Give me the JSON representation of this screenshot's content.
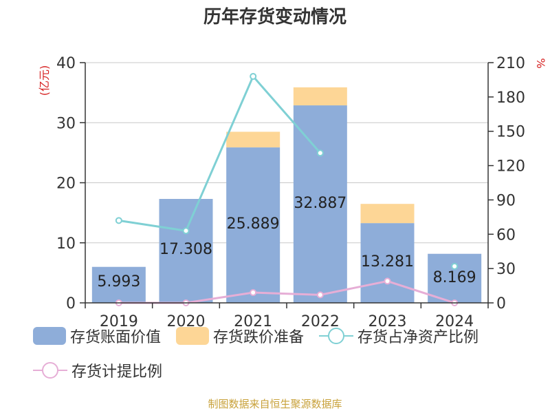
{
  "chart_data": {
    "type": "bar",
    "title": "历年存货变动情况",
    "categories": [
      "2019",
      "2020",
      "2021",
      "2022",
      "2023",
      "2024"
    ],
    "left_axis": {
      "label": "(亿元)",
      "ylim": [
        0,
        40
      ],
      "ticks": [
        "0",
        "10",
        "20",
        "30",
        "40"
      ]
    },
    "right_axis": {
      "label": "%",
      "ylim": [
        0,
        210
      ],
      "ticks": [
        "0",
        "30",
        "60",
        "90",
        "120",
        "150",
        "180",
        "210"
      ]
    },
    "series": [
      {
        "name": "存货账面价值",
        "kind": "bar",
        "axis": "left",
        "color": "#8eadd9",
        "values": [
          5.993,
          17.308,
          25.889,
          32.887,
          13.281,
          8.169
        ],
        "labels": [
          "5.993",
          "17.308",
          "25.889",
          "32.887",
          "13.281",
          "8.169"
        ]
      },
      {
        "name": "存货跌价准备",
        "kind": "bar-stacked",
        "axis": "left",
        "color": "#fdd696",
        "values": [
          0,
          0,
          2.6,
          3.0,
          3.2,
          0
        ]
      },
      {
        "name": "存货占净资产比例",
        "kind": "line",
        "axis": "right",
        "color": "#7fd0d4",
        "values": [
          72,
          63,
          198,
          131,
          null,
          32
        ]
      },
      {
        "name": "存货计提比例",
        "kind": "line",
        "axis": "right",
        "color": "#e6aed6",
        "values": [
          0,
          0,
          9,
          7,
          19,
          0
        ]
      }
    ],
    "grid": true,
    "legend": "bottom"
  },
  "footer": {
    "source": "制图数据来自恒生聚源数据库"
  }
}
